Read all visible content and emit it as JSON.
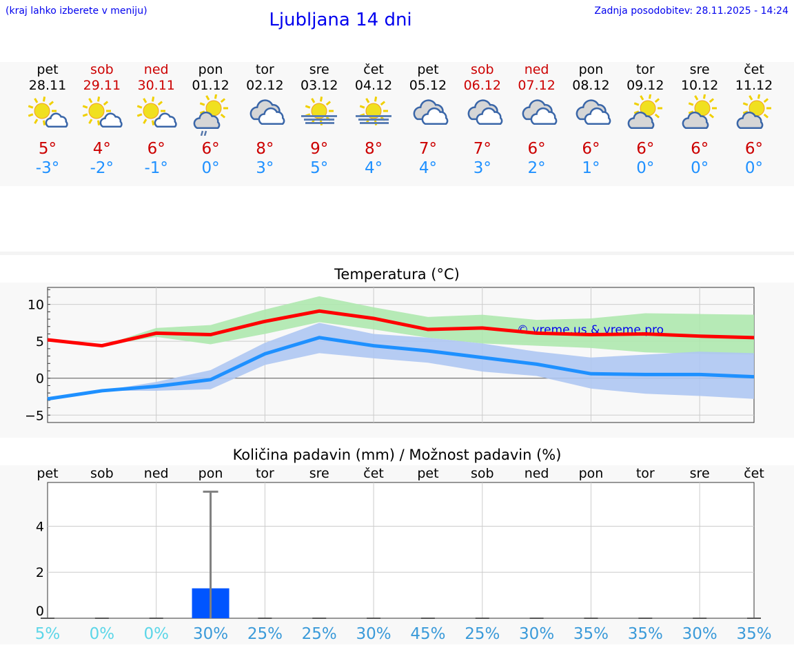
{
  "header": {
    "hint": "(kraj lahko izberete v meniju)",
    "title": "Ljubljana 14 dni",
    "updated": "Zadnja posodobitev: 28.11.2025 - 14:24"
  },
  "days": [
    {
      "name": "pet",
      "date": "28.11",
      "weekend": false,
      "icon": "sun-small-cloud",
      "max": "5°",
      "min": "-3°"
    },
    {
      "name": "sob",
      "date": "29.11",
      "weekend": true,
      "icon": "sun-small-cloud",
      "max": "4°",
      "min": "-2°"
    },
    {
      "name": "ned",
      "date": "30.11",
      "weekend": true,
      "icon": "sun-small-cloud",
      "max": "6°",
      "min": "-1°"
    },
    {
      "name": "pon",
      "date": "01.12",
      "weekend": false,
      "icon": "sun-cloud-rain",
      "max": "6°",
      "min": "0°"
    },
    {
      "name": "tor",
      "date": "02.12",
      "weekend": false,
      "icon": "cloudy",
      "max": "8°",
      "min": "3°"
    },
    {
      "name": "sre",
      "date": "03.12",
      "weekend": false,
      "icon": "sun-fog",
      "max": "9°",
      "min": "5°"
    },
    {
      "name": "čet",
      "date": "04.12",
      "weekend": false,
      "icon": "sun-fog",
      "max": "8°",
      "min": "4°"
    },
    {
      "name": "pet",
      "date": "05.12",
      "weekend": false,
      "icon": "cloudy",
      "max": "7°",
      "min": "4°"
    },
    {
      "name": "sob",
      "date": "06.12",
      "weekend": true,
      "icon": "cloudy",
      "max": "7°",
      "min": "3°"
    },
    {
      "name": "ned",
      "date": "07.12",
      "weekend": true,
      "icon": "cloudy",
      "max": "6°",
      "min": "2°"
    },
    {
      "name": "pon",
      "date": "08.12",
      "weekend": false,
      "icon": "cloudy",
      "max": "6°",
      "min": "1°"
    },
    {
      "name": "tor",
      "date": "09.12",
      "weekend": false,
      "icon": "sun-cloud",
      "max": "6°",
      "min": "0°"
    },
    {
      "name": "sre",
      "date": "10.12",
      "weekend": false,
      "icon": "sun-cloud",
      "max": "6°",
      "min": "0°"
    },
    {
      "name": "čet",
      "date": "11.12",
      "weekend": false,
      "icon": "sun-cloud",
      "max": "6°",
      "min": "0°"
    }
  ],
  "colors": {
    "max": "#ff0000",
    "min": "#1e90ff",
    "max_band": "#aee8ae",
    "min_band": "#aec6f2",
    "bar": "#0055ff",
    "error": "#808080",
    "prob_low": "#5cd6e8",
    "prob": "#3a9ad9"
  },
  "chart_data": [
    {
      "type": "line",
      "title": "Temperatura (°C)",
      "ylim": [
        -6,
        12.3
      ],
      "yticks": [
        10,
        5,
        0,
        -5
      ],
      "ytick_labels": [
        "10",
        "5",
        "0",
        "−5"
      ],
      "grid": true,
      "watermark": "© vreme.us & vreme.pro",
      "series": [
        {
          "key": "max",
          "values": [
            5.2,
            4.4,
            6.1,
            5.9,
            7.7,
            9.1,
            8.1,
            6.6,
            6.8,
            6.1,
            5.9,
            6.0,
            5.7,
            5.5
          ],
          "band_upper": [
            5.2,
            4.4,
            6.8,
            7.2,
            9.3,
            11.1,
            9.6,
            8.3,
            8.6,
            7.9,
            8.1,
            8.8,
            8.7,
            8.6
          ],
          "band_lower": [
            5.2,
            4.4,
            5.6,
            4.6,
            6.0,
            7.6,
            6.6,
            5.5,
            4.7,
            4.4,
            4.1,
            3.5,
            3.3,
            3.2
          ]
        },
        {
          "key": "min",
          "values": [
            -2.8,
            -1.7,
            -1.1,
            -0.2,
            3.3,
            5.5,
            4.4,
            3.7,
            2.8,
            1.9,
            0.6,
            0.5,
            0.5,
            0.2
          ],
          "band_upper": [
            -2.8,
            -1.7,
            -0.5,
            1.1,
            4.8,
            7.5,
            6.0,
            5.5,
            4.7,
            3.6,
            2.8,
            3.2,
            3.6,
            3.4
          ],
          "band_lower": [
            -2.8,
            -1.7,
            -1.7,
            -1.5,
            1.8,
            3.4,
            2.7,
            2.1,
            0.9,
            0.3,
            -1.4,
            -2.1,
            -2.4,
            -2.8
          ]
        }
      ]
    },
    {
      "type": "bar",
      "title": "Količina padavin (mm) / Možnost padavin (%)",
      "categories": [
        "pet",
        "sob",
        "ned",
        "pon",
        "tor",
        "sre",
        "čet",
        "pet",
        "sob",
        "ned",
        "pon",
        "tor",
        "sre",
        "čet"
      ],
      "values": [
        0,
        0,
        0,
        1.3,
        0,
        0,
        0,
        0,
        0,
        0,
        0,
        0,
        0,
        0
      ],
      "error_upper": [
        0,
        0,
        0,
        5.5,
        0,
        0,
        0,
        0,
        0,
        0,
        0,
        0,
        0,
        0
      ],
      "probability": [
        "5%",
        "0%",
        "0%",
        "30%",
        "25%",
        "25%",
        "30%",
        "45%",
        "25%",
        "30%",
        "35%",
        "35%",
        "30%",
        "35%"
      ],
      "ylim": [
        0,
        5.9
      ],
      "yticks": [
        0,
        2,
        4
      ],
      "ytick_labels": [
        "0",
        "2",
        "4"
      ],
      "grid": true
    }
  ]
}
